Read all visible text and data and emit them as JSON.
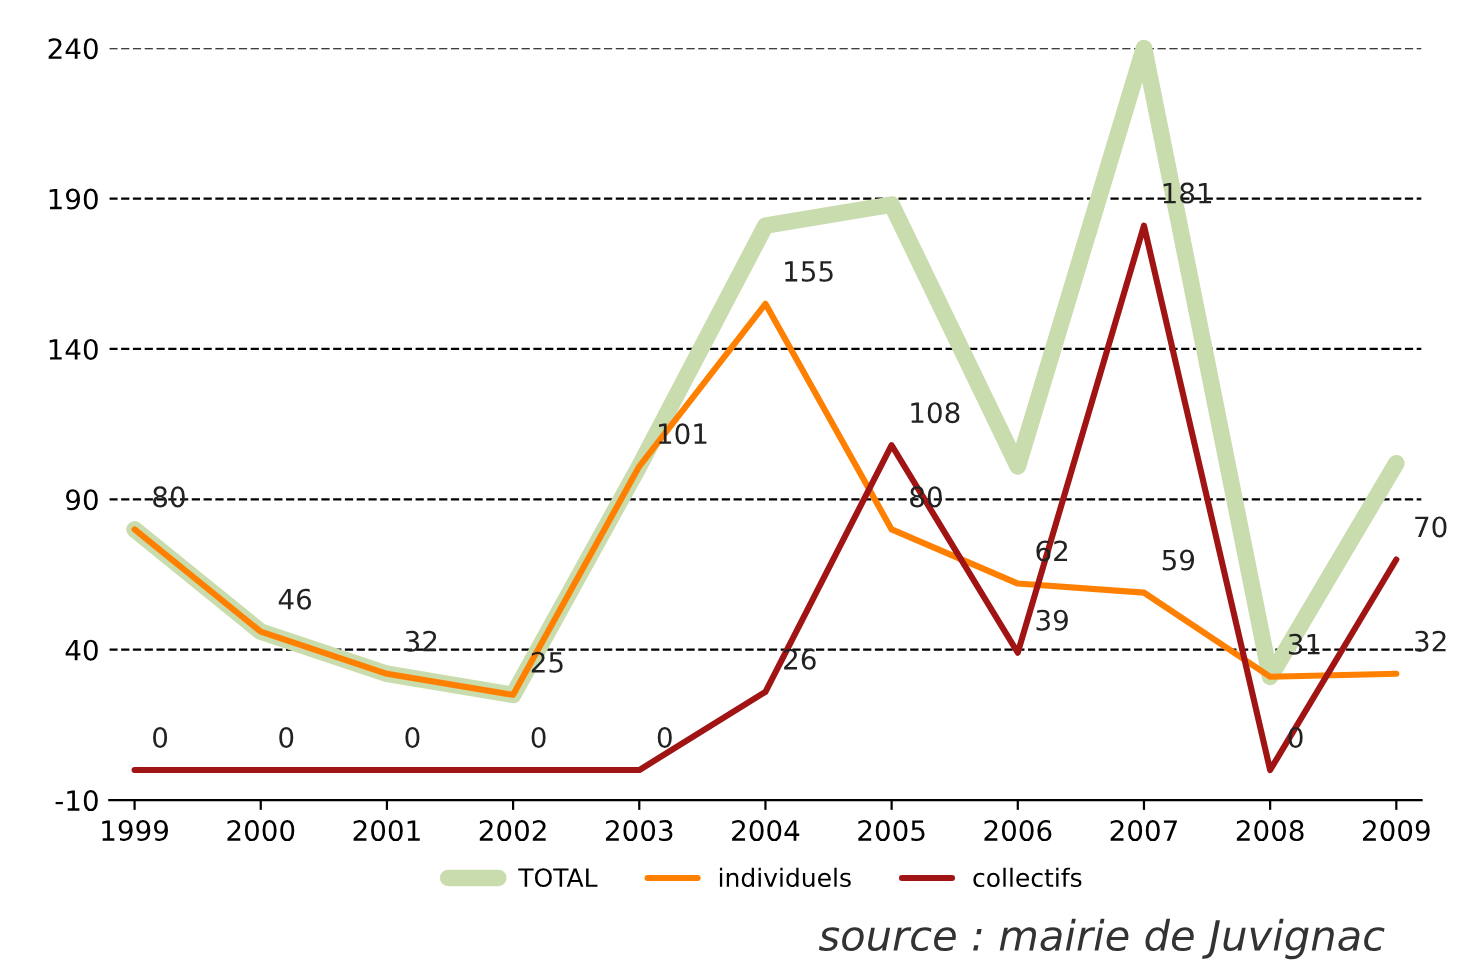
{
  "chart_data": {
    "type": "line",
    "categories": [
      "1999",
      "2000",
      "2001",
      "2002",
      "2003",
      "2004",
      "2005",
      "2006",
      "2007",
      "2008",
      "2009"
    ],
    "series": [
      {
        "name": "TOTAL",
        "color": "#c9dcae",
        "values": [
          80,
          46,
          32,
          25,
          101,
          181,
          188,
          101,
          240,
          31,
          102
        ]
      },
      {
        "name": "individuels",
        "color": "#ff8000",
        "values": [
          80,
          46,
          32,
          25,
          101,
          155,
          80,
          62,
          59,
          31,
          32
        ],
        "value_labels": [
          "80",
          "46",
          "32",
          "25",
          "101",
          "155",
          "80",
          "62",
          "59",
          "31",
          "32"
        ]
      },
      {
        "name": "collectifs",
        "color": "#a01414",
        "values": [
          0,
          0,
          0,
          0,
          0,
          26,
          108,
          39,
          181,
          0,
          70
        ],
        "value_labels": [
          "0",
          "0",
          "0",
          "0",
          "0",
          "26",
          "108",
          "39",
          "181",
          "0",
          "70"
        ]
      }
    ],
    "ylim": [
      -10,
      240
    ],
    "yticks": [
      -10,
      40,
      90,
      140,
      190,
      240
    ],
    "grid": "y",
    "legend": "bottom",
    "marker": "none",
    "line_style": "solid",
    "annotations": [
      "source : mairie de Juvignac"
    ]
  }
}
